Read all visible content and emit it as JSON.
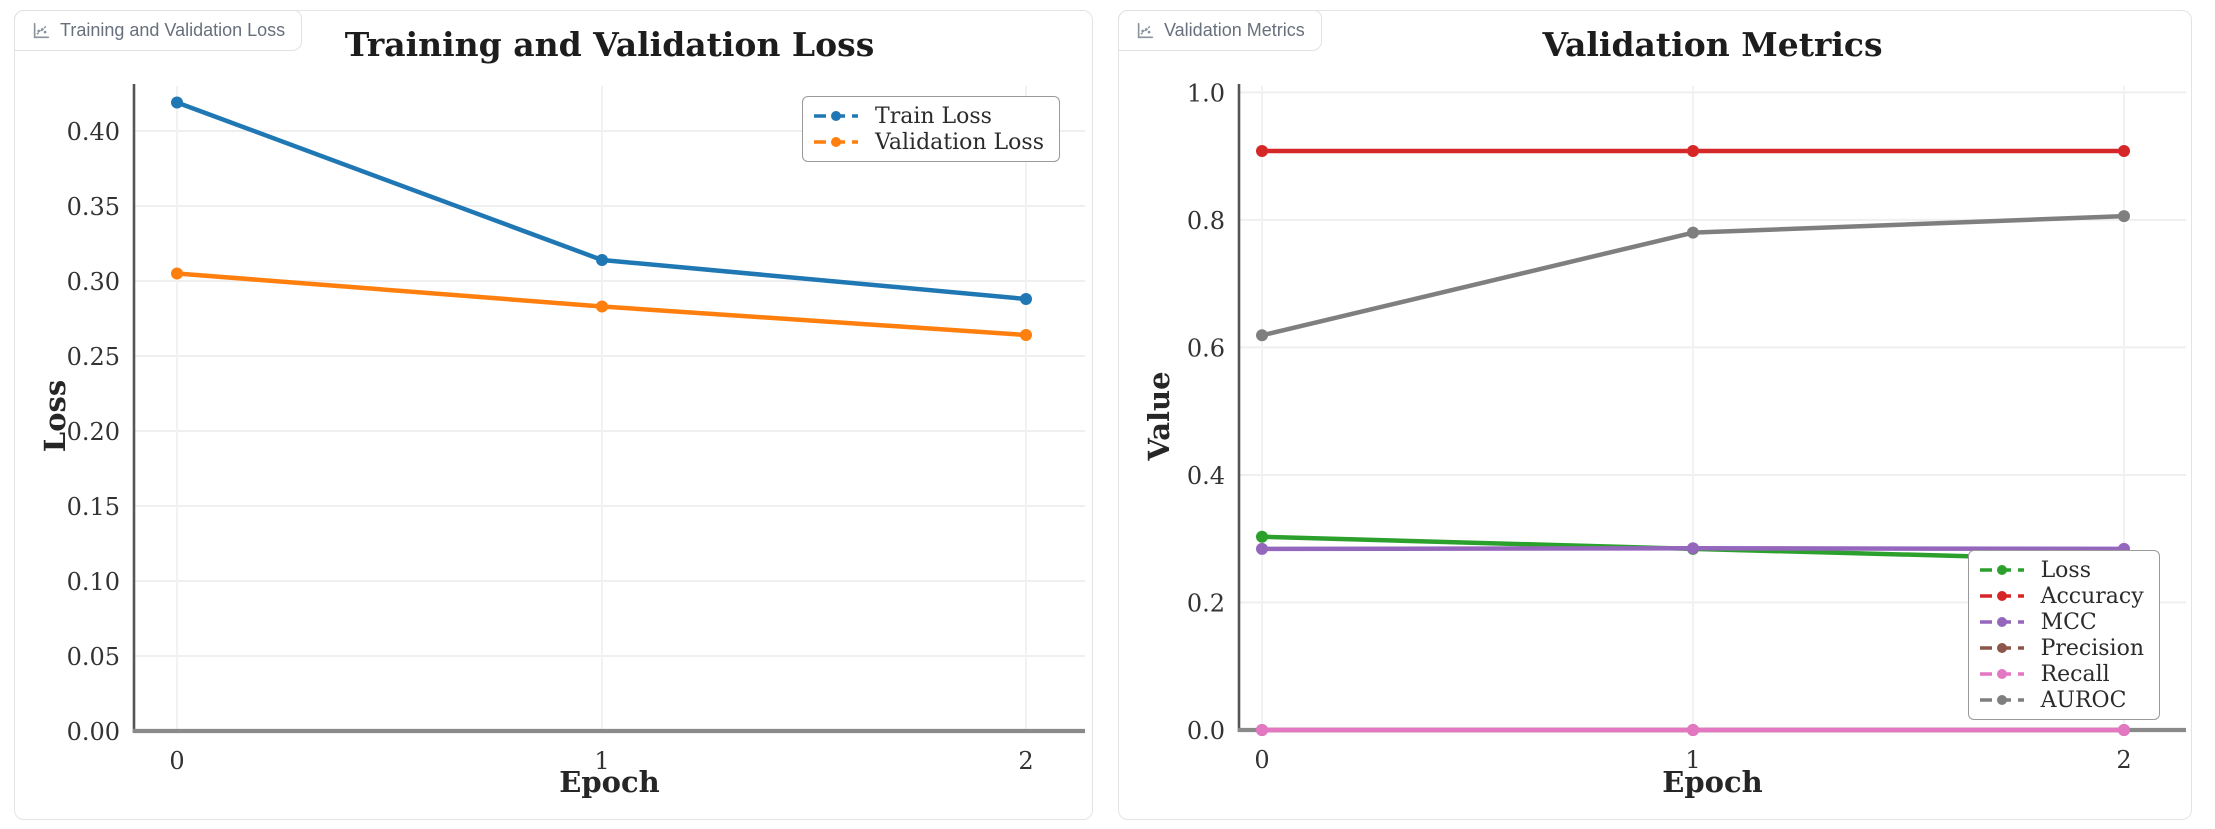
{
  "page": {
    "background": "#ffffff",
    "card_border_color": "#e3e4e6",
    "tab_text_color": "#67707c"
  },
  "cards": [
    {
      "tab_label": "Training and Validation Loss",
      "icon": "scatter-plot-icon"
    },
    {
      "tab_label": "Validation Metrics",
      "icon": "scatter-plot-icon"
    }
  ],
  "chart_data": [
    {
      "type": "line",
      "title": "Training and Validation Loss",
      "xlabel": "Epoch",
      "ylabel": "Loss",
      "x": [
        0,
        1,
        2
      ],
      "xtick_labels": [
        "0",
        "1",
        "2"
      ],
      "ytick_labels": [
        "0.00",
        "0.05",
        "0.10",
        "0.15",
        "0.20",
        "0.25",
        "0.30",
        "0.35",
        "0.40"
      ],
      "ylim": [
        0,
        0.43
      ],
      "grid": true,
      "legend_position": "upper right",
      "series": [
        {
          "name": "Train Loss",
          "color": "#1f77b4",
          "values": [
            0.419,
            0.314,
            0.288
          ]
        },
        {
          "name": "Validation Loss",
          "color": "#ff7f0e",
          "values": [
            0.305,
            0.283,
            0.264
          ]
        }
      ]
    },
    {
      "type": "line",
      "title": "Validation Metrics",
      "xlabel": "Epoch",
      "ylabel": "Value",
      "x": [
        0,
        1,
        2
      ],
      "xtick_labels": [
        "0",
        "1",
        "2"
      ],
      "ytick_labels": [
        "0.0",
        "0.2",
        "0.4",
        "0.6",
        "0.8",
        "1.0"
      ],
      "ylim": [
        0,
        1.01
      ],
      "grid": true,
      "legend_position": "lower right",
      "series": [
        {
          "name": "Loss",
          "color": "#2ca02c",
          "values": [
            0.303,
            0.284,
            0.266
          ]
        },
        {
          "name": "Accuracy",
          "color": "#d62728",
          "values": [
            0.908,
            0.908,
            0.908
          ]
        },
        {
          "name": "MCC",
          "color": "#9467bd",
          "values": [
            0.284,
            0.285,
            0.284
          ]
        },
        {
          "name": "Precision",
          "color": "#8c564b",
          "values": [
            0.0,
            0.0,
            0.0
          ]
        },
        {
          "name": "Recall",
          "color": "#e377c2",
          "values": [
            0.0,
            0.0,
            0.0
          ]
        },
        {
          "name": "AUROC",
          "color": "#7f7f7f",
          "values": [
            0.619,
            0.78,
            0.806
          ]
        }
      ]
    }
  ]
}
